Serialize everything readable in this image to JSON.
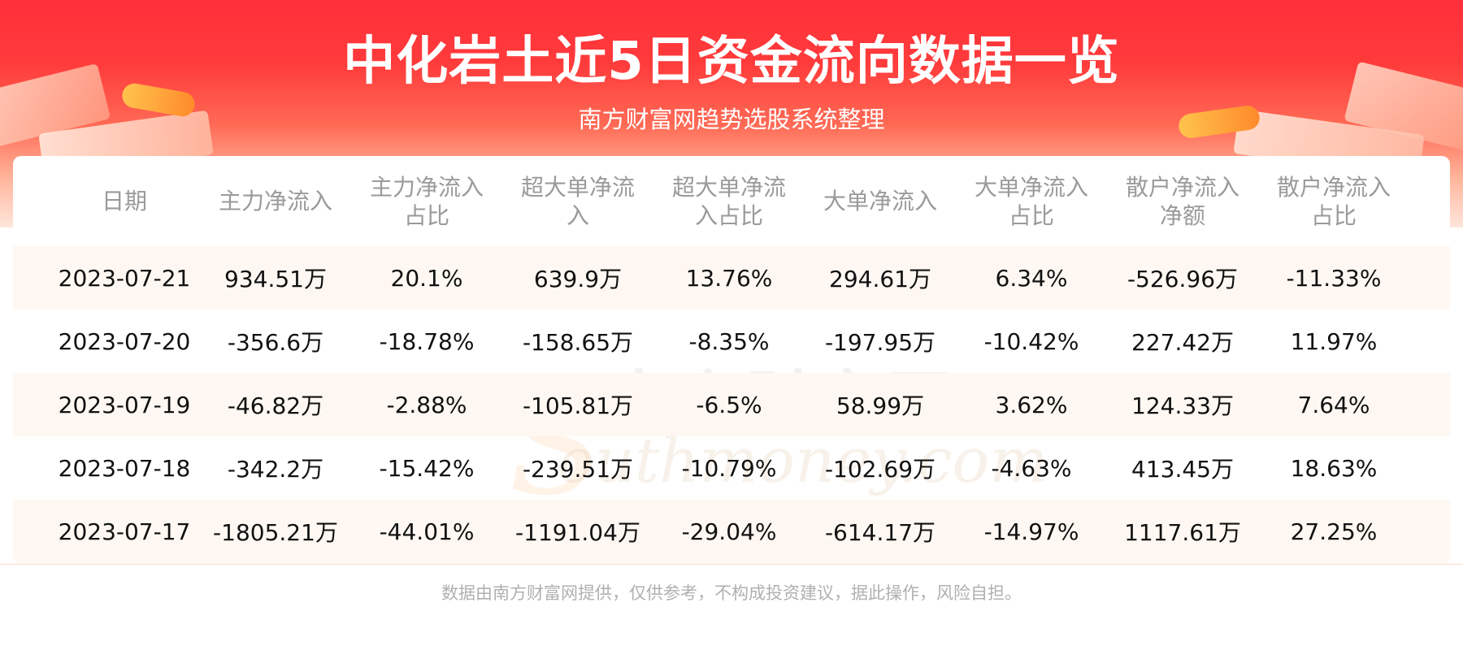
{
  "title": "中化岩土近5日资金流向数据一览",
  "subtitle": "南方财富网趋势选股系统整理",
  "watermark": {
    "cn": "南方财富网",
    "en": "outhmoney.com",
    "s": "S"
  },
  "footer": "数据由南方财富网提供，仅供参考，不构成投资建议，据此操作，风险自担。",
  "chart_data": {
    "type": "table",
    "columns": [
      [
        "日期"
      ],
      [
        "主力净流入"
      ],
      [
        "主力净流入",
        "占比"
      ],
      [
        "超大单净流",
        "入"
      ],
      [
        "超大单净流",
        "入占比"
      ],
      [
        "大单净流入"
      ],
      [
        "大单净流入",
        "占比"
      ],
      [
        "散户净流入",
        "净额"
      ],
      [
        "散户净流入",
        "占比"
      ]
    ],
    "rows": [
      [
        "2023-07-21",
        "934.51万",
        "20.1%",
        "639.9万",
        "13.76%",
        "294.61万",
        "6.34%",
        "-526.96万",
        "-11.33%"
      ],
      [
        "2023-07-20",
        "-356.6万",
        "-18.78%",
        "-158.65万",
        "-8.35%",
        "-197.95万",
        "-10.42%",
        "227.42万",
        "11.97%"
      ],
      [
        "2023-07-19",
        "-46.82万",
        "-2.88%",
        "-105.81万",
        "-6.5%",
        "58.99万",
        "3.62%",
        "124.33万",
        "7.64%"
      ],
      [
        "2023-07-18",
        "-342.2万",
        "-15.42%",
        "-239.51万",
        "-10.79%",
        "-102.69万",
        "-4.63%",
        "413.45万",
        "18.63%"
      ],
      [
        "2023-07-17",
        "-1805.21万",
        "-44.01%",
        "-1191.04万",
        "-29.04%",
        "-614.17万",
        "-14.97%",
        "1117.61万",
        "27.25%"
      ]
    ]
  }
}
